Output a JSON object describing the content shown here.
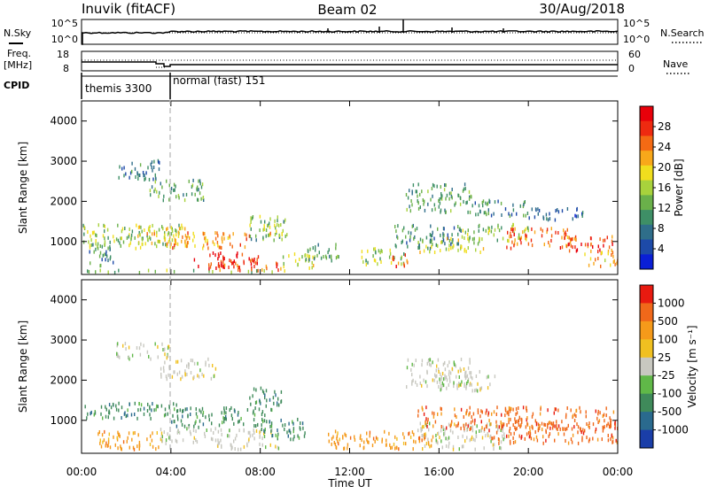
{
  "header": {
    "station": "Inuvik (fitACF)",
    "beam": "Beam 02",
    "date": "30/Aug/2018"
  },
  "noise_panel": {
    "left_label": "N.Sky",
    "left_ticks": [
      "10^5",
      "10^0"
    ],
    "right_label": "N.Search",
    "right_ticks": [
      "10^5",
      "10^0"
    ]
  },
  "freq_panel": {
    "left_label_line1": "Freq.",
    "left_label_line2": "[MHz]",
    "left_ticks": [
      "18",
      "8"
    ],
    "right_label": "Nave",
    "right_ticks": [
      "60",
      "0"
    ]
  },
  "cpid_panel": {
    "label": "CPID",
    "modes": [
      {
        "name": "themis 3300",
        "start": "00:00",
        "end": "04:00"
      },
      {
        "name": "normal (fast) 151",
        "start": "04:00",
        "end": "24:00"
      }
    ]
  },
  "chart_data": [
    {
      "type": "heatmap",
      "title": "",
      "ylabel": "Slant Range [km]",
      "xlabel": "Time UT",
      "ylim": [
        180,
        4500
      ],
      "y_ticks": [
        "4000",
        "3000",
        "2000",
        "1000"
      ],
      "x_ticks": [
        "00:00",
        "04:00",
        "08:00",
        "12:00",
        "16:00",
        "20:00",
        "00:00"
      ],
      "colorbar": {
        "label": "Power [dB]",
        "ticks": [
          "28",
          "24",
          "20",
          "16",
          "12",
          "8",
          "4"
        ],
        "range": [
          0,
          30
        ],
        "colors": [
          "#0a1fd6",
          "#1d4aa8",
          "#2f6e8a",
          "#3e8f66",
          "#6ab04a",
          "#a8d23c",
          "#f0de1e",
          "#f8a81a",
          "#f46a14",
          "#ee2a10",
          "#e8000a"
        ]
      },
      "regions": [
        {
          "t": [
            0.0,
            9.5
          ],
          "r": [
            200,
            260
          ],
          "v": 12
        },
        {
          "t": [
            0.3,
            1.5
          ],
          "r": [
            350,
            900
          ],
          "v": 8
        },
        {
          "t": [
            0.0,
            4.5
          ],
          "r": [
            800,
            1400
          ],
          "v": 14
        },
        {
          "t": [
            2.5,
            5.0
          ],
          "r": [
            900,
            1350
          ],
          "v": 20
        },
        {
          "t": [
            4.0,
            7.5
          ],
          "r": [
            800,
            1200
          ],
          "v": 22
        },
        {
          "t": [
            5.0,
            8.0
          ],
          "r": [
            300,
            700
          ],
          "v": 28
        },
        {
          "t": [
            6.0,
            9.0
          ],
          "r": [
            250,
            450
          ],
          "v": 26
        },
        {
          "t": [
            7.5,
            9.2
          ],
          "r": [
            1000,
            1600
          ],
          "v": 12
        },
        {
          "t": [
            8.0,
            9.0
          ],
          "r": [
            1100,
            1500
          ],
          "v": 18
        },
        {
          "t": [
            9.0,
            10.5
          ],
          "r": [
            300,
            700
          ],
          "v": 16
        },
        {
          "t": [
            10.0,
            11.5
          ],
          "r": [
            450,
            900
          ],
          "v": 10
        },
        {
          "t": [
            12.5,
            14.5
          ],
          "r": [
            400,
            800
          ],
          "v": 14
        },
        {
          "t": [
            13.8,
            14.6
          ],
          "r": [
            350,
            650
          ],
          "v": 26
        },
        {
          "t": [
            14.0,
            17.0
          ],
          "r": [
            800,
            1400
          ],
          "v": 8
        },
        {
          "t": [
            15.0,
            18.0
          ],
          "r": [
            700,
            1050
          ],
          "v": 16
        },
        {
          "t": [
            17.0,
            20.0
          ],
          "r": [
            1000,
            1400
          ],
          "v": 14
        },
        {
          "t": [
            19.0,
            22.0
          ],
          "r": [
            800,
            1300
          ],
          "v": 24
        },
        {
          "t": [
            21.5,
            23.8
          ],
          "r": [
            700,
            1100
          ],
          "v": 26
        },
        {
          "t": [
            22.5,
            24.0
          ],
          "r": [
            350,
            700
          ],
          "v": 20
        },
        {
          "t": [
            1.5,
            3.5
          ],
          "r": [
            2500,
            3000
          ],
          "v": 6
        },
        {
          "t": [
            3.0,
            5.5
          ],
          "r": [
            2000,
            2500
          ],
          "v": 10
        },
        {
          "t": [
            14.5,
            17.5
          ],
          "r": [
            1700,
            2400
          ],
          "v": 10
        },
        {
          "t": [
            17.5,
            20.0
          ],
          "r": [
            1600,
            2000
          ],
          "v": 8
        },
        {
          "t": [
            20.0,
            22.5
          ],
          "r": [
            1500,
            1800
          ],
          "v": 6
        }
      ]
    },
    {
      "type": "heatmap",
      "title": "",
      "ylabel": "Slant Range [km]",
      "xlabel": "Time UT",
      "ylim": [
        180,
        4500
      ],
      "y_ticks": [
        "4000",
        "3000",
        "2000",
        "1000"
      ],
      "x_ticks": [
        "00:00",
        "04:00",
        "08:00",
        "12:00",
        "16:00",
        "20:00",
        "00:00"
      ],
      "colorbar": {
        "label": "Velocity [m s⁻¹]",
        "ticks": [
          "1000",
          "500",
          "100",
          "25",
          "-25",
          "-100",
          "-500",
          "-1000"
        ],
        "colors": [
          "#1a3ea8",
          "#2a6a8e",
          "#3f8a5a",
          "#60b848",
          "#c8c8c0",
          "#f0c020",
          "#f59a1a",
          "#f0681a",
          "#e81a10"
        ]
      },
      "regions": [
        {
          "t": [
            0.0,
            4.5
          ],
          "r": [
            1000,
            1400
          ],
          "c": 2
        },
        {
          "t": [
            4.0,
            8.5
          ],
          "r": [
            800,
            1300
          ],
          "c": 2
        },
        {
          "t": [
            0.5,
            3.5
          ],
          "r": [
            250,
            700
          ],
          "c": 6
        },
        {
          "t": [
            3.5,
            6.0
          ],
          "r": [
            400,
            800
          ],
          "c": 4
        },
        {
          "t": [
            6.0,
            9.0
          ],
          "r": [
            250,
            750
          ],
          "c": 4
        },
        {
          "t": [
            8.0,
            10.0
          ],
          "r": [
            500,
            1000
          ],
          "c": 2
        },
        {
          "t": [
            7.5,
            9.0
          ],
          "r": [
            1300,
            1800
          ],
          "c": 2
        },
        {
          "t": [
            11.0,
            16.0
          ],
          "r": [
            250,
            700
          ],
          "c": 6
        },
        {
          "t": [
            15.0,
            19.0
          ],
          "r": [
            250,
            900
          ],
          "c": 4
        },
        {
          "t": [
            15.0,
            24.0
          ],
          "r": [
            750,
            1300
          ],
          "c": 7
        },
        {
          "t": [
            18.0,
            24.0
          ],
          "r": [
            400,
            900
          ],
          "c": 7
        },
        {
          "t": [
            1.5,
            4.0
          ],
          "r": [
            2500,
            2900
          ],
          "c": 4
        },
        {
          "t": [
            3.5,
            6.0
          ],
          "r": [
            2000,
            2500
          ],
          "c": 4
        },
        {
          "t": [
            14.5,
            17.5
          ],
          "r": [
            1800,
            2500
          ],
          "c": 4
        },
        {
          "t": [
            16.0,
            18.5
          ],
          "r": [
            1700,
            2200
          ],
          "c": 4
        }
      ]
    }
  ],
  "colors": {
    "axis": "#000000",
    "mode_divider": "#bbbbbb",
    "background": "#ffffff"
  }
}
